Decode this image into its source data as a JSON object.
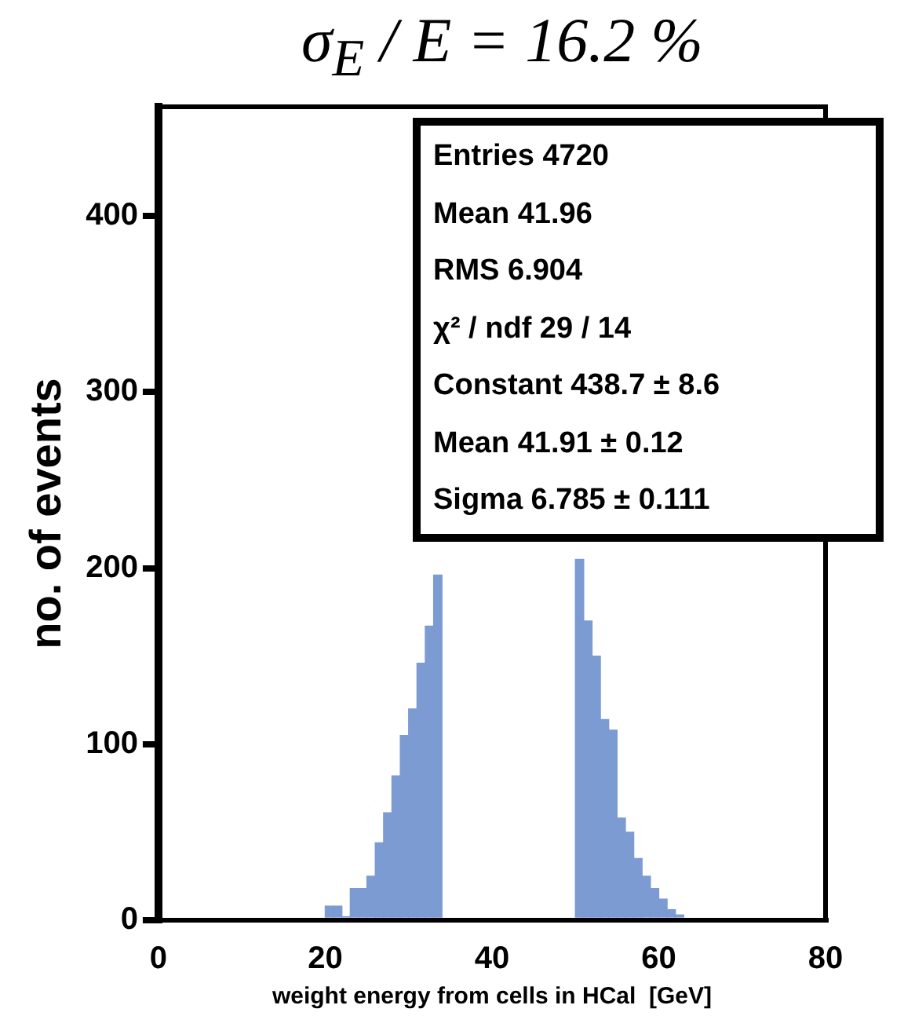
{
  "chart_data": {
    "type": "histogram",
    "title": "σ$_{E}$ / E = 16.2 %",
    "xlabel": "weight energy from cells in HCal  [GeV]",
    "ylabel": "no. of events",
    "bins": [
      20,
      21,
      22,
      23,
      24,
      25,
      26,
      27,
      28,
      29,
      30,
      31,
      32,
      33,
      34,
      35,
      36,
      37,
      38,
      39,
      40,
      41,
      42,
      43,
      44,
      45,
      46,
      47,
      48,
      49,
      50,
      51,
      52,
      53,
      54,
      55,
      56,
      57,
      58,
      59,
      60,
      61,
      62,
      63
    ],
    "values": [
      8,
      8,
      2,
      18,
      18,
      25,
      44,
      61,
      82,
      105,
      120,
      146,
      167,
      196,
      null,
      null,
      null,
      null,
      null,
      null,
      null,
      null,
      null,
      null,
      null,
      null,
      null,
      null,
      null,
      null,
      205,
      170,
      150,
      114,
      108,
      58,
      50,
      35,
      25,
      18,
      12,
      6,
      3
    ],
    "color": "#7b9bd2",
    "xlim": [
      0,
      80
    ],
    "xticks": [
      0,
      20,
      40,
      60,
      80
    ],
    "ylim": [
      0,
      462
    ],
    "yticks": [
      0,
      100,
      200,
      300,
      400
    ],
    "grid": false,
    "legend": false,
    "annotations": [
      "Entries 4720",
      "Mean 41.96",
      "RMS 6.904",
      "χ² / ndf 29 / 14",
      "Constant 438.7 ± 8.6",
      "Mean 41.91 ± 0.12",
      "Sigma 6.785 ± 0.111"
    ]
  }
}
